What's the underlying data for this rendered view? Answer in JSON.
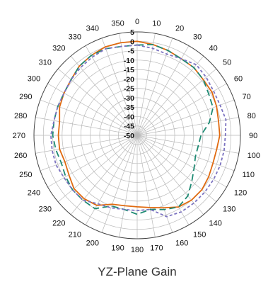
{
  "chart_data": {
    "type": "polar-line",
    "title": "YZ-Plane Gain",
    "angular_axis": {
      "direction": "clockwise",
      "zero_at": "top",
      "tick_step": 10,
      "tick_labels": [
        "0",
        "10",
        "20",
        "30",
        "40",
        "50",
        "60",
        "70",
        "80",
        "90",
        "100",
        "110",
        "120",
        "130",
        "140",
        "150",
        "160",
        "170",
        "180",
        "190",
        "200",
        "210",
        "220",
        "230",
        "240",
        "250",
        "260",
        "270",
        "280",
        "290",
        "300",
        "310",
        "320",
        "330",
        "340",
        "350"
      ]
    },
    "radial_axis": {
      "range": [
        -50,
        5
      ],
      "ticks": [
        5,
        0,
        -5,
        -10,
        -15,
        -20,
        -25,
        -30,
        -35,
        -40,
        -45,
        -50
      ],
      "tick_labels": [
        "5",
        "0",
        "-5",
        "-10",
        "-15",
        "-20",
        "-25",
        "-30",
        "-35",
        "-40",
        "-45",
        "-50"
      ]
    },
    "grid": true,
    "x": [
      0,
      10,
      20,
      30,
      40,
      50,
      60,
      70,
      80,
      90,
      100,
      110,
      120,
      130,
      140,
      150,
      160,
      170,
      180,
      190,
      200,
      210,
      220,
      230,
      240,
      250,
      260,
      270,
      280,
      290,
      300,
      310,
      320,
      330,
      340,
      350
    ],
    "series": [
      {
        "color": "#E06A10",
        "dash": "solid",
        "values": [
          0,
          -1,
          -2,
          -3,
          -3,
          -4,
          -4,
          -5,
          -6,
          -6,
          -7,
          -7,
          -6,
          -5,
          -5,
          -6,
          -9,
          -11,
          -12,
          -12,
          -11,
          -7,
          -6,
          -6,
          -8,
          -9,
          -8,
          -8,
          -8,
          -6,
          -5,
          -4,
          -2,
          -1,
          0,
          0
        ]
      },
      {
        "color": "#1E8A73",
        "dash": "long-dash",
        "values": [
          -2,
          -1,
          -2,
          -3,
          -3,
          -4,
          -6,
          -7,
          -11,
          -16,
          -17,
          -17,
          -15,
          -12,
          -8,
          -6,
          -8,
          -10,
          -8,
          -10,
          -10,
          -5,
          -5,
          -5,
          -6,
          -7,
          -6,
          -5,
          -5,
          -5,
          -5,
          -4,
          -2,
          -1,
          -1,
          -2
        ]
      },
      {
        "color": "#7B72C0",
        "dash": "short-dash",
        "values": [
          -2,
          -3,
          -4,
          -3,
          -1,
          -2,
          -3,
          -3,
          -2,
          -3,
          -3,
          -3,
          -3,
          -3,
          -3,
          -3,
          -4,
          -10,
          -10,
          -10,
          -9,
          -8,
          -5,
          -5,
          -5,
          -4,
          -4,
          -4,
          -5,
          -5,
          -5,
          -4,
          -3,
          -2,
          -1,
          -2
        ]
      }
    ]
  }
}
